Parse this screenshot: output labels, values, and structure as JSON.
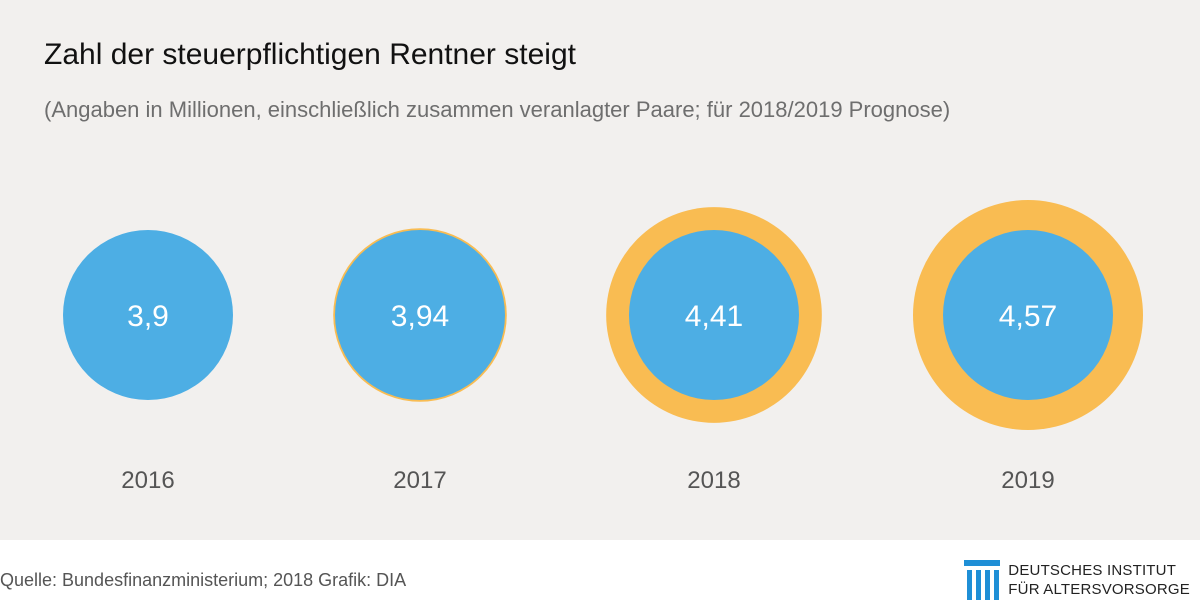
{
  "header": {
    "title": "Zahl der steuerpflichtigen Rentner steigt",
    "subtitle": "(Angaben in Millionen, einschließlich zusammen veranlagter Paare; für 2018/2019 Prognose)"
  },
  "chart_data": {
    "type": "bubble",
    "categories": [
      "2016",
      "2017",
      "2018",
      "2019"
    ],
    "values": [
      3.9,
      3.94,
      4.41,
      4.57
    ],
    "value_labels": [
      "3,9",
      "3,94",
      "4,41",
      "4,57"
    ],
    "baseline_value": 3.9,
    "colors": {
      "base": "#4daee4",
      "increase": "#f9bc52",
      "label": "#ffffff",
      "year": "#555555"
    }
  },
  "footer": {
    "source": "Quelle: Bundesfinanzministerium; 2018  Grafik: DIA",
    "brand_line1": "DEUTSCHES INSTITUT",
    "brand_line2": "FÜR ALTERSVORSORGE",
    "brand_color": "#1f8fd6"
  }
}
